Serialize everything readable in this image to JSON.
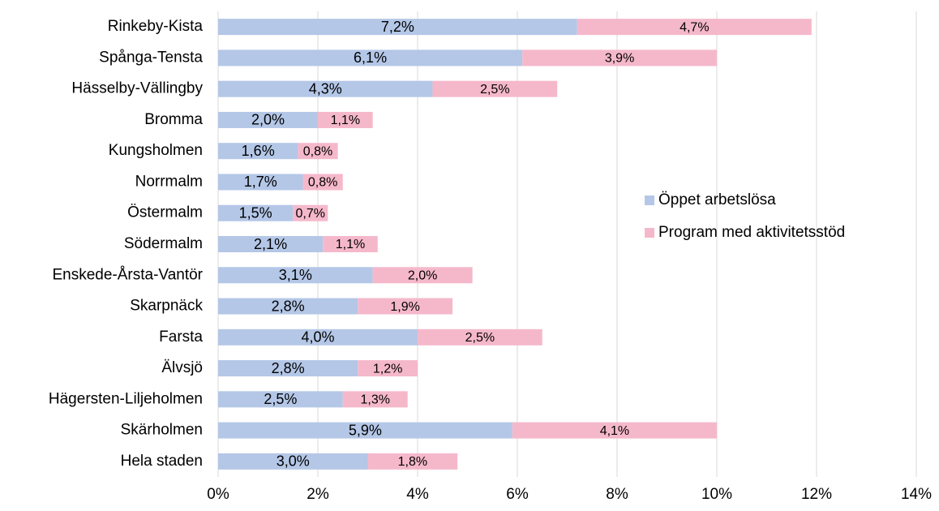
{
  "chart_data": {
    "type": "stacked-bar-horizontal",
    "categories": [
      "Rinkeby-Kista",
      "Spånga-Tensta",
      "Hässelby-Vällingby",
      "Bromma",
      "Kungsholmen",
      "Norrmalm",
      "Östermalm",
      "Södermalm",
      "Enskede-Årsta-Vantör",
      "Skarpnäck",
      "Farsta",
      "Älvsjö",
      "Hägersten-Liljeholmen",
      "Skärholmen",
      "Hela staden"
    ],
    "series": [
      {
        "name": "Öppet arbetslösa",
        "color": "#b4c7e7",
        "values": [
          7.2,
          6.1,
          4.3,
          2.0,
          1.6,
          1.7,
          1.5,
          2.1,
          3.1,
          2.8,
          4.0,
          2.8,
          2.5,
          5.9,
          3.0
        ],
        "value_labels": [
          "7,2%",
          "6,1%",
          "4,3%",
          "2,0%",
          "1,6%",
          "1,7%",
          "1,5%",
          "2,1%",
          "3,1%",
          "2,8%",
          "4,0%",
          "2,8%",
          "2,5%",
          "5,9%",
          "3,0%"
        ]
      },
      {
        "name": "Program med aktivitetsstöd",
        "color": "#f5b8cb",
        "values": [
          4.7,
          3.9,
          2.5,
          1.1,
          0.8,
          0.8,
          0.7,
          1.1,
          2.0,
          1.9,
          2.5,
          1.2,
          1.3,
          4.1,
          1.8
        ],
        "value_labels": [
          "4,7%",
          "3,9%",
          "2,5%",
          "1,1%",
          "0,8%",
          "0,8%",
          "0,7%",
          "1,1%",
          "2,0%",
          "1,9%",
          "2,5%",
          "1,2%",
          "1,3%",
          "4,1%",
          "1,8%"
        ]
      }
    ],
    "xlim": [
      0,
      14
    ],
    "xticks": [
      {
        "value": 0,
        "label": "0%"
      },
      {
        "value": 2,
        "label": "2%"
      },
      {
        "value": 4,
        "label": "4%"
      },
      {
        "value": 6,
        "label": "6%"
      },
      {
        "value": 8,
        "label": "8%"
      },
      {
        "value": 10,
        "label": "10%"
      },
      {
        "value": 12,
        "label": "12%"
      },
      {
        "value": 14,
        "label": "14%"
      }
    ],
    "grid": true,
    "legend": "right"
  }
}
